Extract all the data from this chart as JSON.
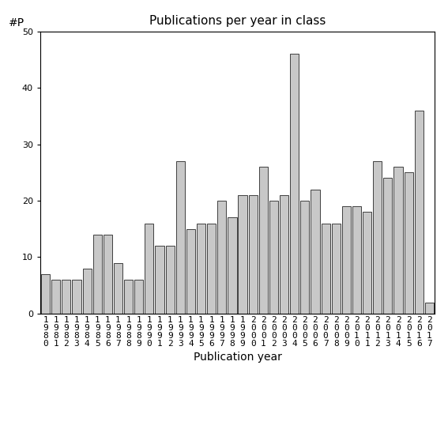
{
  "title": "Publications per year in class",
  "xlabel": "Publication year",
  "ylabel": "#P",
  "years": [
    1980,
    1981,
    1982,
    1983,
    1984,
    1985,
    1986,
    1987,
    1988,
    1989,
    1990,
    1991,
    1992,
    1993,
    1994,
    1995,
    1996,
    1997,
    1998,
    1999,
    2000,
    2001,
    2002,
    2003,
    2004,
    2005,
    2006,
    2007,
    2008,
    2009,
    2010,
    2011,
    2012,
    2013,
    2014,
    2015,
    2016,
    2017
  ],
  "values": [
    7,
    6,
    6,
    6,
    8,
    14,
    14,
    9,
    6,
    6,
    16,
    12,
    12,
    27,
    15,
    16,
    16,
    20,
    17,
    21,
    21,
    26,
    20,
    21,
    46,
    20,
    22,
    16,
    16,
    19,
    19,
    18,
    27,
    24,
    26,
    25,
    36,
    2
  ],
  "bar_color": "#c8c8c8",
  "bar_edgecolor": "#000000",
  "ylim": [
    0,
    50
  ],
  "yticks": [
    0,
    10,
    20,
    30,
    40,
    50
  ],
  "background_color": "#ffffff",
  "title_fontsize": 11,
  "xlabel_fontsize": 10,
  "tick_fontsize": 8
}
